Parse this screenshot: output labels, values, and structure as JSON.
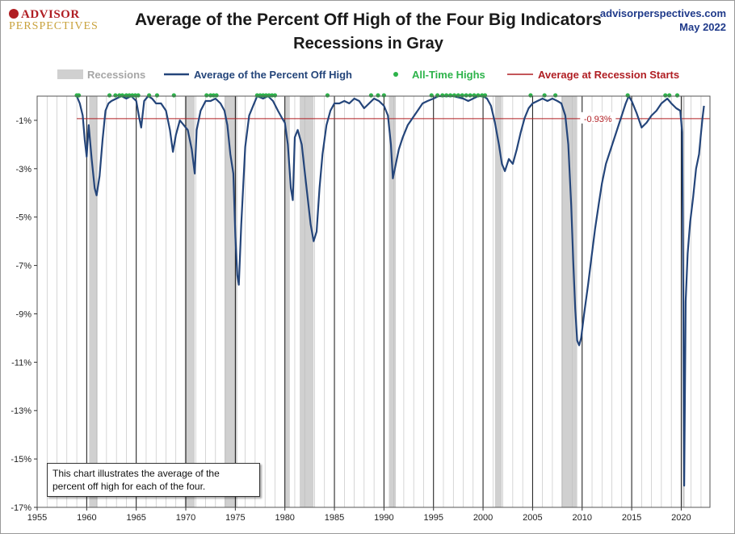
{
  "logo": {
    "top": "ADVISOR",
    "bottom": "PERSPECTIVES"
  },
  "source": {
    "site": "advisorperspectives.com",
    "date": "May 2022"
  },
  "note": "This chart illustrates the average of the percent off high for each of the four.",
  "colors": {
    "line": "#24457a",
    "recession": "#d0d0d0",
    "ath": "#2db34a",
    "avg": "#b01e23",
    "grid": "#bbbbbb"
  },
  "chart_data": {
    "type": "line",
    "title": "Average of the Percent Off High of the Four Big Indicators",
    "subtitle": "Recessions in Gray",
    "xlabel": "",
    "ylabel": "",
    "xlim": [
      1955,
      2022.9
    ],
    "ylim": [
      -17,
      0
    ],
    "x_ticks": [
      "1955",
      "1960",
      "1965",
      "1970",
      "1975",
      "1980",
      "1985",
      "1990",
      "1995",
      "2000",
      "2005",
      "2010",
      "2015",
      "2020"
    ],
    "y_ticks": [
      "-1%",
      "-3%",
      "-5%",
      "-7%",
      "-9%",
      "-11%",
      "-13%",
      "-15%",
      "-17%"
    ],
    "legend_position": "top",
    "legend": {
      "recessions": "Recessions",
      "series": "Average of the Percent Off High",
      "ath": "All-Time Highs",
      "avg": "Average at Recession Starts"
    },
    "recessions": [
      [
        1960.25,
        1961.1
      ],
      [
        1969.9,
        1970.9
      ],
      [
        1973.9,
        1975.2
      ],
      [
        1980.0,
        1980.5
      ],
      [
        1981.5,
        1982.9
      ],
      [
        1990.5,
        1991.2
      ],
      [
        2001.2,
        2001.9
      ],
      [
        2007.9,
        2009.5
      ],
      [
        2020.1,
        2020.35
      ]
    ],
    "average_at_recession_starts": -0.93,
    "average_label": "-0.93%",
    "series": [
      {
        "name": "Average of the Percent Off High",
        "points": [
          [
            1959.0,
            0
          ],
          [
            1959.3,
            -0.3
          ],
          [
            1959.6,
            -0.8
          ],
          [
            1959.8,
            -1.8
          ],
          [
            1960.0,
            -2.5
          ],
          [
            1960.2,
            -1.2
          ],
          [
            1960.5,
            -2.6
          ],
          [
            1960.8,
            -3.8
          ],
          [
            1961.0,
            -4.1
          ],
          [
            1961.3,
            -3.3
          ],
          [
            1961.6,
            -1.8
          ],
          [
            1961.9,
            -0.6
          ],
          [
            1962.2,
            -0.3
          ],
          [
            1962.5,
            -0.2
          ],
          [
            1963.0,
            -0.1
          ],
          [
            1963.5,
            0
          ],
          [
            1964.0,
            -0.1
          ],
          [
            1964.5,
            0
          ],
          [
            1965.0,
            -0.2
          ],
          [
            1965.3,
            -0.9
          ],
          [
            1965.5,
            -1.3
          ],
          [
            1965.8,
            -0.2
          ],
          [
            1966.2,
            0
          ],
          [
            1966.6,
            -0.1
          ],
          [
            1967.0,
            -0.3
          ],
          [
            1967.5,
            -0.3
          ],
          [
            1968.0,
            -0.6
          ],
          [
            1968.4,
            -1.4
          ],
          [
            1968.7,
            -2.3
          ],
          [
            1969.0,
            -1.6
          ],
          [
            1969.4,
            -1.0
          ],
          [
            1969.8,
            -1.2
          ],
          [
            1970.2,
            -1.4
          ],
          [
            1970.6,
            -2.2
          ],
          [
            1970.9,
            -3.2
          ],
          [
            1971.1,
            -1.4
          ],
          [
            1971.5,
            -0.6
          ],
          [
            1972.0,
            -0.2
          ],
          [
            1972.5,
            -0.2
          ],
          [
            1973.0,
            -0.1
          ],
          [
            1973.5,
            -0.3
          ],
          [
            1973.9,
            -0.6
          ],
          [
            1974.2,
            -1.2
          ],
          [
            1974.5,
            -2.4
          ],
          [
            1974.8,
            -3.2
          ],
          [
            1975.0,
            -5.8
          ],
          [
            1975.2,
            -7.4
          ],
          [
            1975.35,
            -7.8
          ],
          [
            1975.6,
            -5.3
          ],
          [
            1976.0,
            -2.1
          ],
          [
            1976.4,
            -0.8
          ],
          [
            1976.8,
            -0.4
          ],
          [
            1977.2,
            0
          ],
          [
            1977.8,
            -0.1
          ],
          [
            1978.3,
            0
          ],
          [
            1978.8,
            -0.2
          ],
          [
            1979.3,
            -0.6
          ],
          [
            1979.7,
            -0.9
          ],
          [
            1980.0,
            -1.1
          ],
          [
            1980.3,
            -2.0
          ],
          [
            1980.6,
            -3.8
          ],
          [
            1980.8,
            -4.3
          ],
          [
            1981.0,
            -1.7
          ],
          [
            1981.3,
            -1.4
          ],
          [
            1981.7,
            -2.0
          ],
          [
            1982.0,
            -3.1
          ],
          [
            1982.3,
            -4.2
          ],
          [
            1982.6,
            -5.3
          ],
          [
            1982.9,
            -6.0
          ],
          [
            1983.2,
            -5.6
          ],
          [
            1983.5,
            -3.8
          ],
          [
            1983.8,
            -2.4
          ],
          [
            1984.2,
            -1.2
          ],
          [
            1984.6,
            -0.6
          ],
          [
            1985.0,
            -0.3
          ],
          [
            1985.5,
            -0.3
          ],
          [
            1986.0,
            -0.2
          ],
          [
            1986.5,
            -0.3
          ],
          [
            1987.0,
            -0.1
          ],
          [
            1987.5,
            -0.2
          ],
          [
            1988.0,
            -0.5
          ],
          [
            1988.5,
            -0.3
          ],
          [
            1989.0,
            -0.1
          ],
          [
            1989.5,
            -0.2
          ],
          [
            1990.0,
            -0.4
          ],
          [
            1990.4,
            -0.8
          ],
          [
            1990.7,
            -2.0
          ],
          [
            1990.9,
            -3.4
          ],
          [
            1991.2,
            -2.8
          ],
          [
            1991.5,
            -2.2
          ],
          [
            1991.9,
            -1.7
          ],
          [
            1992.4,
            -1.2
          ],
          [
            1992.9,
            -0.9
          ],
          [
            1993.4,
            -0.6
          ],
          [
            1993.9,
            -0.3
          ],
          [
            1994.4,
            -0.2
          ],
          [
            1995.0,
            -0.1
          ],
          [
            1995.5,
            0
          ],
          [
            1996.0,
            0
          ],
          [
            1997.0,
            0
          ],
          [
            1998.0,
            -0.1
          ],
          [
            1998.5,
            -0.2
          ],
          [
            1999.0,
            -0.1
          ],
          [
            1999.5,
            0
          ],
          [
            2000.0,
            0
          ],
          [
            2000.4,
            -0.1
          ],
          [
            2000.8,
            -0.4
          ],
          [
            2001.2,
            -1.1
          ],
          [
            2001.6,
            -2.0
          ],
          [
            2001.9,
            -2.8
          ],
          [
            2002.2,
            -3.1
          ],
          [
            2002.6,
            -2.6
          ],
          [
            2003.0,
            -2.8
          ],
          [
            2003.4,
            -2.2
          ],
          [
            2003.8,
            -1.5
          ],
          [
            2004.2,
            -0.9
          ],
          [
            2004.6,
            -0.5
          ],
          [
            2005.0,
            -0.3
          ],
          [
            2005.5,
            -0.2
          ],
          [
            2006.0,
            -0.1
          ],
          [
            2006.5,
            -0.2
          ],
          [
            2007.0,
            -0.1
          ],
          [
            2007.5,
            -0.2
          ],
          [
            2007.9,
            -0.3
          ],
          [
            2008.3,
            -0.8
          ],
          [
            2008.6,
            -2.0
          ],
          [
            2008.9,
            -4.5
          ],
          [
            2009.1,
            -6.8
          ],
          [
            2009.3,
            -8.8
          ],
          [
            2009.5,
            -10.1
          ],
          [
            2009.7,
            -10.3
          ],
          [
            2009.9,
            -10.0
          ],
          [
            2010.2,
            -9.0
          ],
          [
            2010.6,
            -7.8
          ],
          [
            2010.9,
            -6.8
          ],
          [
            2011.3,
            -5.5
          ],
          [
            2011.7,
            -4.4
          ],
          [
            2012.0,
            -3.6
          ],
          [
            2012.4,
            -2.8
          ],
          [
            2012.8,
            -2.3
          ],
          [
            2013.2,
            -1.8
          ],
          [
            2013.6,
            -1.3
          ],
          [
            2014.0,
            -0.8
          ],
          [
            2014.4,
            -0.3
          ],
          [
            2014.7,
            0
          ],
          [
            2015.0,
            -0.2
          ],
          [
            2015.5,
            -0.7
          ],
          [
            2016.0,
            -1.3
          ],
          [
            2016.5,
            -1.1
          ],
          [
            2017.0,
            -0.8
          ],
          [
            2017.5,
            -0.6
          ],
          [
            2018.0,
            -0.3
          ],
          [
            2018.6,
            -0.1
          ],
          [
            2019.0,
            -0.3
          ],
          [
            2019.5,
            -0.5
          ],
          [
            2019.9,
            -0.6
          ],
          [
            2020.1,
            -1.5
          ],
          [
            2020.2,
            -8.0
          ],
          [
            2020.3,
            -16.1
          ],
          [
            2020.45,
            -8.5
          ],
          [
            2020.65,
            -6.5
          ],
          [
            2020.9,
            -5.2
          ],
          [
            2021.2,
            -4.2
          ],
          [
            2021.5,
            -3.0
          ],
          [
            2021.8,
            -2.4
          ],
          [
            2022.0,
            -1.5
          ],
          [
            2022.15,
            -0.9
          ],
          [
            2022.3,
            -0.4
          ]
        ]
      }
    ],
    "all_time_highs": [
      1959.0,
      1959.2,
      1962.3,
      1962.9,
      1963.3,
      1963.6,
      1964.0,
      1964.3,
      1964.6,
      1964.9,
      1965.2,
      1966.3,
      1967.1,
      1968.8,
      1972.1,
      1972.5,
      1972.8,
      1973.1,
      1977.2,
      1977.5,
      1977.8,
      1978.1,
      1978.4,
      1978.7,
      1979.0,
      1984.3,
      1988.7,
      1989.4,
      1990.0,
      1994.8,
      1995.4,
      1995.9,
      1996.3,
      1996.7,
      1997.1,
      1997.5,
      1997.9,
      1998.3,
      1998.7,
      1999.1,
      1999.5,
      1999.9,
      2000.2,
      2004.8,
      2006.2,
      2007.3,
      2014.6,
      2018.4,
      2018.8,
      2019.6
    ]
  }
}
